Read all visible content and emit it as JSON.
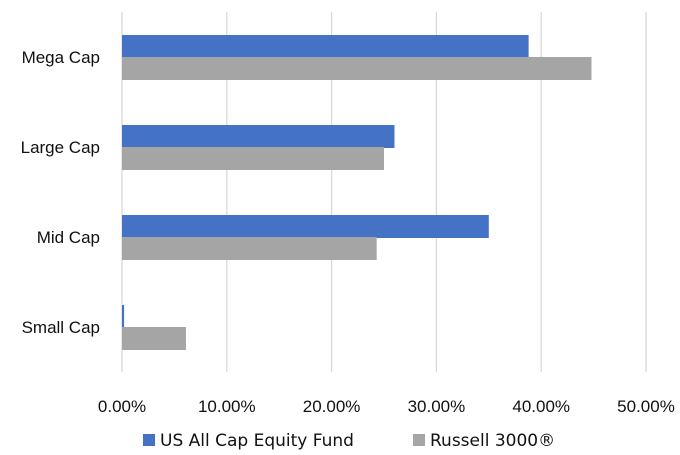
{
  "chart_data": {
    "type": "bar",
    "orientation": "horizontal",
    "categories": [
      "Mega Cap",
      "Large Cap",
      "Mid Cap",
      "Small Cap"
    ],
    "series": [
      {
        "name": "US All Cap Equity Fund",
        "color": "#4472c4",
        "values": [
          38.8,
          26.0,
          35.0,
          0.2
        ]
      },
      {
        "name": "Russell 3000®",
        "color": "#a5a5a5",
        "values": [
          44.8,
          25.0,
          24.3,
          6.1
        ]
      }
    ],
    "x_ticks": [
      "0.00%",
      "10.00%",
      "20.00%",
      "30.00%",
      "40.00%",
      "50.00%"
    ],
    "xlim": [
      0,
      50
    ],
    "grid": "vertical",
    "legend_position": "bottom",
    "title": "",
    "xlabel": "",
    "ylabel": ""
  }
}
